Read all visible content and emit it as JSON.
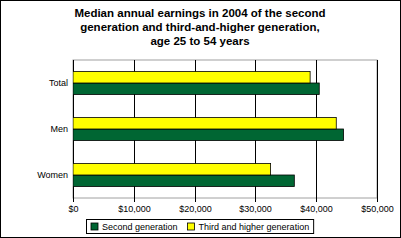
{
  "chart_data": {
    "type": "bar",
    "orientation": "horizontal",
    "title": [
      "Median annual earnings in 2004 of the second",
      "generation and third-and-higher generation,",
      "age 25 to 54 years"
    ],
    "categories": [
      "Total",
      "Men",
      "Women"
    ],
    "series": [
      {
        "name": "Second generation",
        "color": "#006633",
        "values": [
          40500,
          44500,
          36400
        ]
      },
      {
        "name": "Third and higher generation",
        "color": "#ffff00",
        "values": [
          39000,
          43300,
          32500
        ]
      }
    ],
    "xlim": [
      0,
      50000
    ],
    "xticks": [
      {
        "value": 0,
        "label": "$0"
      },
      {
        "value": 10000,
        "label": "$10,000"
      },
      {
        "value": 20000,
        "label": "$20,000"
      },
      {
        "value": 30000,
        "label": "$30,000"
      },
      {
        "value": 40000,
        "label": "$40,000"
      },
      {
        "value": 50000,
        "label": "$50,000"
      }
    ],
    "grid": true,
    "legend": "bottom"
  }
}
